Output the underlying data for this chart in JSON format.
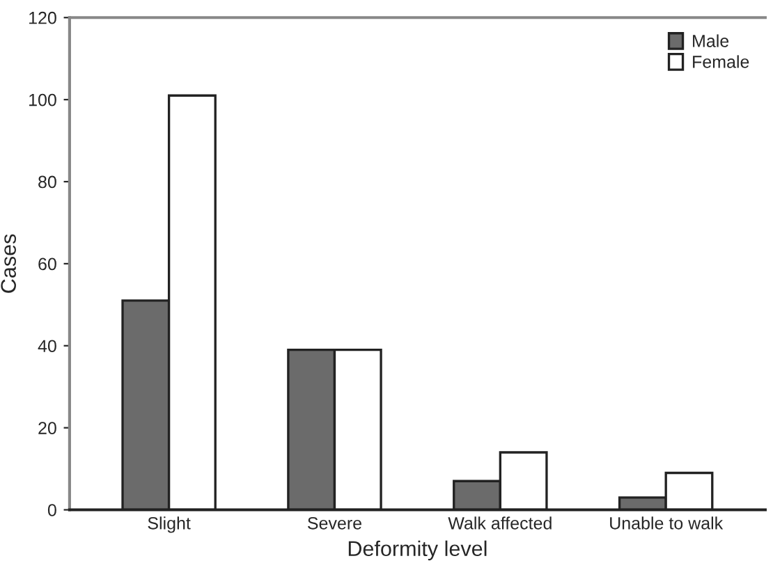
{
  "chart_data": {
    "type": "bar",
    "xlabel": "Deformity level",
    "ylabel": "Cases",
    "categories": [
      "Slight",
      "Severe",
      "Walk affected",
      "Unable to walk"
    ],
    "series": [
      {
        "name": "Male",
        "color": "#6b6b6b",
        "values": [
          51,
          39,
          7,
          3
        ]
      },
      {
        "name": "Female",
        "color": "#ffffff",
        "values": [
          101,
          39,
          14,
          9
        ]
      }
    ],
    "ylim": [
      0,
      120
    ],
    "yticks": [
      0,
      20,
      40,
      60,
      80,
      100,
      120
    ],
    "grid": false,
    "legend": "top right"
  }
}
